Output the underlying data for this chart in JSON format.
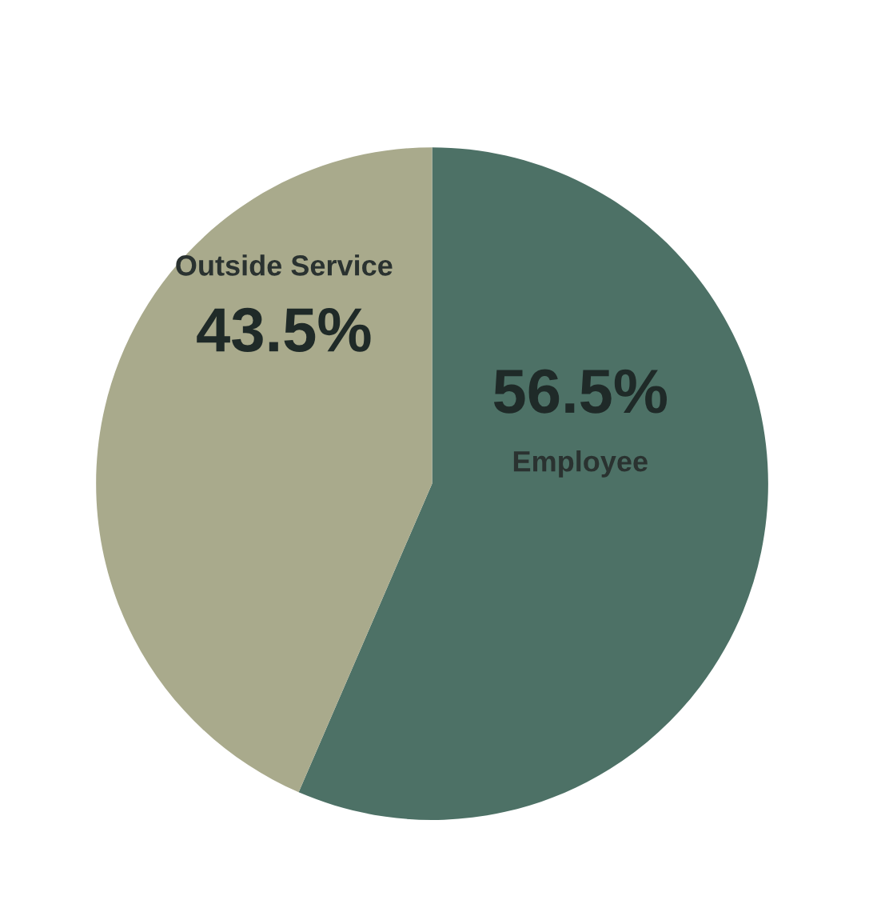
{
  "chart_data": {
    "type": "pie",
    "categories": [
      "Employee",
      "Outside Service"
    ],
    "values": [
      56.5,
      43.5
    ],
    "colors": [
      "#4d7166",
      "#a9aa8c"
    ],
    "value_labels": [
      "56.5%",
      "43.5%"
    ]
  }
}
